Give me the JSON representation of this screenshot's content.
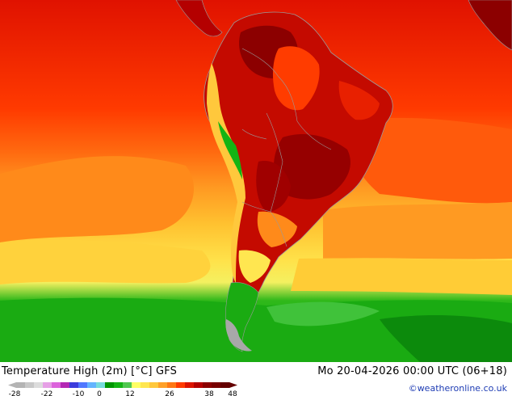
{
  "map": {
    "title": "Temperature High (2m) [°C] GFS",
    "run_label": "Mo 20-04-2026 00:00 UTC (06+18)",
    "credit": "©weatheronline.co.uk",
    "region": "South America",
    "colorbar": {
      "colors": [
        "#b4b4b4",
        "#c8c8c8",
        "#dcdcdc",
        "#e6a0e6",
        "#dc64dc",
        "#b428b4",
        "#3c3cdc",
        "#5078ff",
        "#64b4ff",
        "#78dcdc",
        "#009600",
        "#14b414",
        "#50c850",
        "#ffff64",
        "#ffe650",
        "#ffc83c",
        "#ffa028",
        "#ff7814",
        "#ff3c00",
        "#dc1400",
        "#b40000",
        "#8c0000",
        "#780000",
        "#640000"
      ],
      "tick_labels": [
        "-28",
        "-22",
        "-10",
        "0",
        "12",
        "26",
        "38",
        "48"
      ]
    }
  }
}
